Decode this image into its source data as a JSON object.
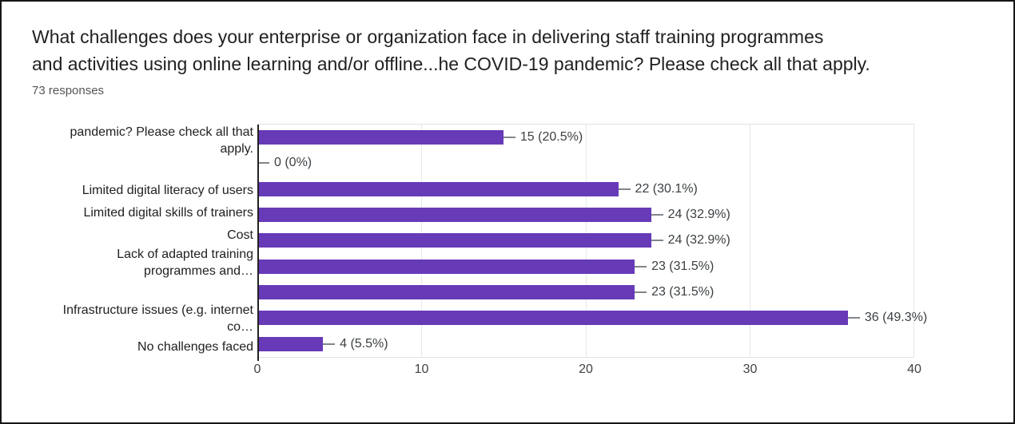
{
  "header": {
    "responses_count": "73 responses"
  },
  "chart_data": {
    "type": "bar",
    "orientation": "horizontal",
    "title": "What challenges does your enterprise or organization face in delivering staff training programmes\nand activities using online learning and/or offline...he COVID-19 pandemic? Please check all that apply.",
    "categories": [
      "pandemic? Please check all that\napply.",
      "",
      "Limited digital literacy of users",
      "Limited digital skills of trainers",
      "Cost",
      "Lack of adapted training\nprogrammes and…",
      "",
      "Infrastructure issues (e.g. internet\nco…",
      "No challenges faced"
    ],
    "values": [
      15,
      0,
      22,
      24,
      24,
      23,
      23,
      36,
      4
    ],
    "value_labels": [
      "15 (20.5%)",
      "0 (0%)",
      "22 (30.1%)",
      "24 (32.9%)",
      "24 (32.9%)",
      "23 (31.5%)",
      "23 (31.5%)",
      "36 (49.3%)",
      "4 (5.5%)"
    ],
    "xlim": [
      0,
      40
    ],
    "x_ticks": [
      0,
      10,
      20,
      30,
      40
    ],
    "bar_color": "#673ab7",
    "grid": true,
    "legend": false
  }
}
